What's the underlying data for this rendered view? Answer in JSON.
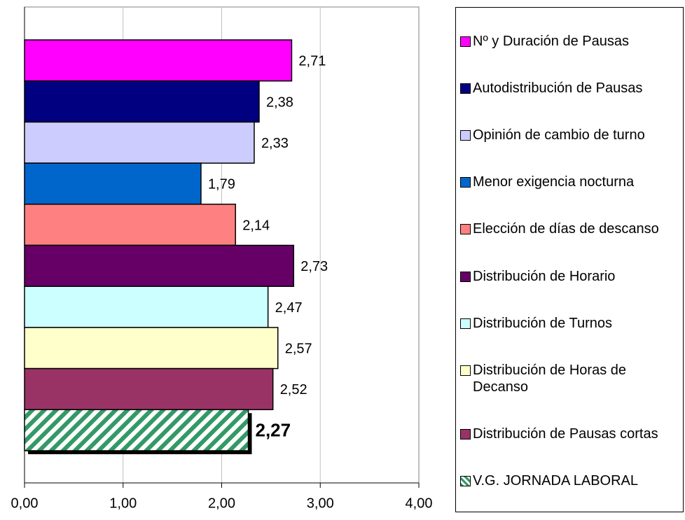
{
  "chart_data": {
    "type": "bar",
    "orientation": "horizontal",
    "categories": [
      "Nº y Duración de Pausas",
      "Autodistribución de Pausas",
      "Opinión de cambio de turno",
      "Menor exigencia nocturna",
      "Elección de días de descanso",
      "Distribución de Horario",
      "Distribución de Turnos",
      "Distribución de Horas de Decanso",
      "Distribución de Pausas cortas",
      "V.G. JORNADA LABORAL"
    ],
    "values": [
      2.71,
      2.38,
      2.33,
      1.79,
      2.14,
      2.73,
      2.47,
      2.57,
      2.52,
      2.27
    ],
    "value_labels": [
      "2,71",
      "2,38",
      "2,33",
      "1,79",
      "2,14",
      "2,73",
      "2,47",
      "2,57",
      "2,52",
      "2,27"
    ],
    "colors": [
      "#ff00ff",
      "#000080",
      "#ccccff",
      "#0066cc",
      "#ff8080",
      "#660066",
      "#ccffff",
      "#ffffcc",
      "#993366",
      "#339966"
    ],
    "hatch": [
      false,
      false,
      false,
      false,
      false,
      false,
      false,
      false,
      false,
      true
    ],
    "xlim": [
      0,
      4
    ],
    "xticks": [
      {
        "value": 0,
        "label": "0,00"
      },
      {
        "value": 1,
        "label": "1,00"
      },
      {
        "value": 2,
        "label": "2,00"
      },
      {
        "value": 3,
        "label": "3,00"
      },
      {
        "value": 4,
        "label": "4,00"
      }
    ],
    "grid": true,
    "legend": "right"
  }
}
